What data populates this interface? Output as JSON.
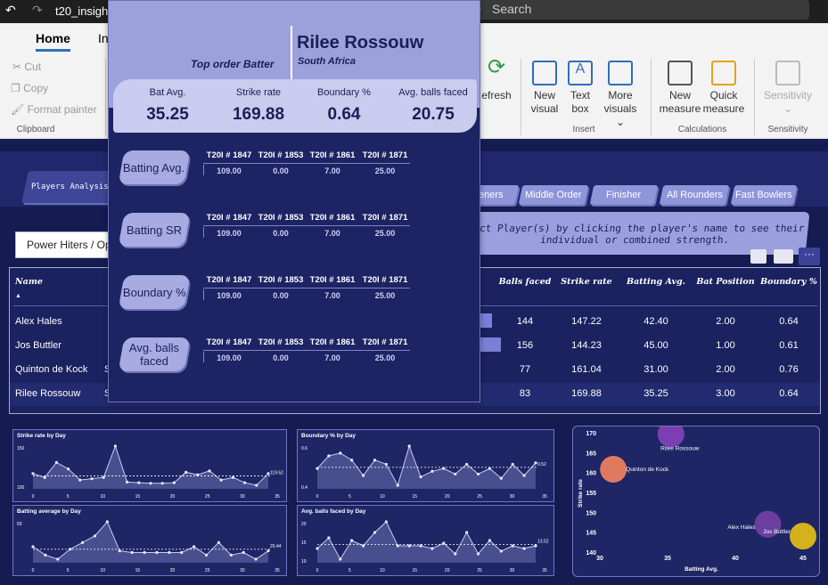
{
  "titlebar": {
    "file_name": "t20_insights",
    "search_placeholder": "Search"
  },
  "ribbon": {
    "tabs": [
      "Home",
      "In"
    ],
    "clipboard": {
      "cut": "Cut",
      "copy": "Copy",
      "format_painter": "Format painter",
      "group": "Clipboard"
    },
    "refresh": "efresh",
    "insert": {
      "new_visual": "New visual",
      "text_box": "Text box",
      "more_visuals": "More visuals",
      "group": "Insert"
    },
    "calculations": {
      "new_measure": "New measure",
      "quick_measure": "Quick measure",
      "group": "Calculations"
    },
    "sensitivity": {
      "label": "Sensitivity",
      "group": "Sensitivity"
    }
  },
  "report": {
    "nav_tabs": [
      "Players Analysis",
      "eners",
      "Middle Order",
      "Finisher",
      "All Rounders",
      "Fast Bowlers"
    ],
    "info_text": "lect Player(s) by clicking the player's name to see their individual or combined strength.",
    "slicer_value": "Power Hiters / Ope",
    "table": {
      "name_header": "Name",
      "headers": [
        "Balls faced",
        "Strike rate",
        "Batting Avg.",
        "Bat Position",
        "Boundary %"
      ],
      "rows": [
        {
          "name": "Alex Hales",
          "prefix": "",
          "bar": 0.35,
          "cells": [
            "144",
            "147.22",
            "42.40",
            "2.00",
            "0.64"
          ]
        },
        {
          "name": "Jos Buttler",
          "prefix": "",
          "bar": 0.6,
          "cells": [
            "156",
            "144.23",
            "45.00",
            "1.00",
            "0.61"
          ]
        },
        {
          "name": "Quinton de Kock",
          "prefix": "S",
          "bar": 0,
          "cells": [
            "77",
            "161.04",
            "31.00",
            "2.00",
            "0.76"
          ]
        },
        {
          "name": "Rilee Rossouw",
          "prefix": "S",
          "bar": 0,
          "cells": [
            "83",
            "169.88",
            "35.25",
            "3.00",
            "0.64"
          ]
        }
      ]
    }
  },
  "popup": {
    "name": "Rilee Rossouw",
    "country": "South Africa",
    "role": "Top order Batter",
    "kpis": [
      {
        "label": "Bat Avg.",
        "value": "35.25"
      },
      {
        "label": "Strike rate",
        "value": "169.88"
      },
      {
        "label": "Boundary %",
        "value": "0.64"
      },
      {
        "label": "Avg. balls faced",
        "value": "20.75"
      }
    ],
    "matches": [
      "T20I # 1847",
      "T20I # 1853",
      "T20I # 1861",
      "T20I # 1871"
    ],
    "metrics": [
      {
        "label": "Batting Avg.",
        "values": [
          "109.00",
          "0.00",
          "7.00",
          "25.00"
        ]
      },
      {
        "label": "Batting SR",
        "values": [
          "109.00",
          "0.00",
          "7.00",
          "25.00"
        ]
      },
      {
        "label": "Boundary %",
        "values": [
          "109.00",
          "0.00",
          "7.00",
          "25.00"
        ]
      },
      {
        "label": "Avg. balls faced",
        "values": [
          "109.00",
          "0.00",
          "7.00",
          "25.00"
        ]
      }
    ]
  },
  "charts": [
    {
      "title": "Strike rate by Day",
      "yticks": [
        "150",
        "100"
      ],
      "xticks": [
        "0",
        "5",
        "10",
        "15",
        "20",
        "25",
        "30",
        "35"
      ],
      "avg_label": "119.52",
      "points": [
        118,
        112,
        135,
        125,
        108,
        110,
        112,
        160,
        105,
        104,
        103,
        103,
        104,
        120,
        116,
        122,
        108,
        112,
        104,
        100,
        118
      ]
    },
    {
      "title": "Boundary % by Day",
      "yticks": [
        "0.6",
        "0.4"
      ],
      "xticks": [
        "0",
        "5",
        "10",
        "15",
        "20",
        "25",
        "30",
        "35"
      ],
      "avg_label": "0.52",
      "points": [
        0.52,
        0.61,
        0.63,
        0.58,
        0.47,
        0.58,
        0.55,
        0.4,
        0.68,
        0.46,
        0.5,
        0.52,
        0.48,
        0.55,
        0.48,
        0.52,
        0.45,
        0.55,
        0.47,
        0.56
      ]
    },
    {
      "title": "Batting average by Day",
      "yticks": [
        "50"
      ],
      "xticks": [
        "0",
        "5",
        "10",
        "15",
        "20",
        "25",
        "30",
        "35"
      ],
      "avg_label": "20.44",
      "points": [
        25,
        15,
        10,
        22,
        30,
        38,
        55,
        20,
        18,
        18,
        18,
        18,
        18,
        25,
        15,
        30,
        15,
        18,
        10,
        20
      ]
    },
    {
      "title": "Avg. balls faced by Day",
      "yticks": [
        "20",
        "15",
        "10"
      ],
      "xticks": [
        "0",
        "5",
        "10",
        "15",
        "20",
        "25",
        "30",
        "35"
      ],
      "avg_label": "13.52",
      "points": [
        12,
        16,
        8,
        15,
        13,
        18,
        22,
        13,
        13,
        13,
        12,
        14,
        10,
        18,
        10,
        15,
        11,
        13,
        12,
        13
      ]
    }
  ],
  "scatter": {
    "xlabel": "Batting Avg.",
    "ylabel": "Strike rate",
    "xticks": [
      "30",
      "35",
      "40",
      "45"
    ],
    "yticks": [
      "170",
      "165",
      "160",
      "155",
      "150",
      "145",
      "140"
    ],
    "points": [
      {
        "name": "Rilee Rossouw",
        "x": 35.25,
        "y": 169.88,
        "color": "#7a3fb0"
      },
      {
        "name": "Quinton de Kock",
        "x": 31.0,
        "y": 161.04,
        "color": "#e07a5f"
      },
      {
        "name": "Jos Buttler",
        "x": 45.0,
        "y": 144.23,
        "color": "#d4b21c"
      },
      {
        "name": "Alex Hales",
        "x": 42.4,
        "y": 147.22,
        "color": "#6a3fa0"
      }
    ]
  }
}
